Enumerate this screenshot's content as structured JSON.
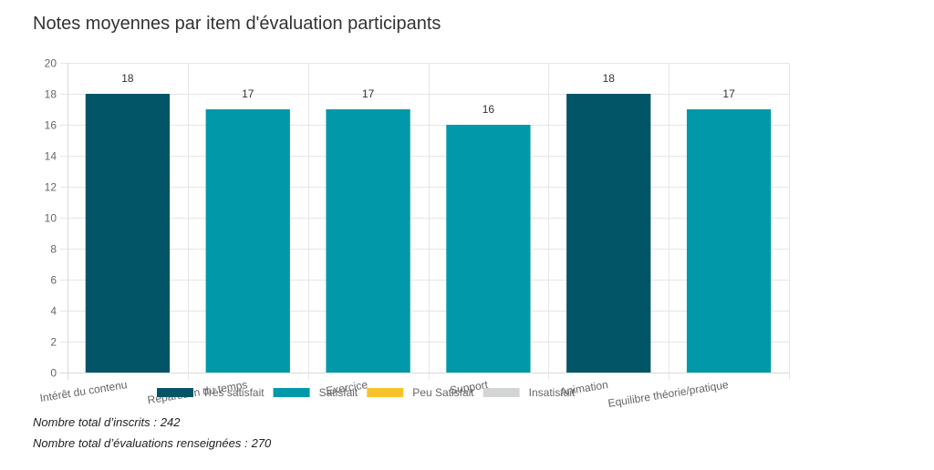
{
  "page": {
    "title": "Notes moyennes par item d'évaluation participants"
  },
  "footer": {
    "inscrits_label": "Nombre total d’inscrits :",
    "inscrits_value": "242",
    "evaluations_label": "Nombre total d’évaluations renseignées :",
    "evaluations_value": "270"
  },
  "chart_data": {
    "type": "bar",
    "title": "Notes moyennes par item d'évaluation participants",
    "xlabel": "",
    "ylabel": "",
    "categories": [
      "Intérêt du contenu",
      "Répartition du temps",
      "Exercice",
      "Support",
      "Animation",
      "Equilibre théorie/pratique"
    ],
    "values": [
      18,
      17,
      17,
      16,
      18,
      17
    ],
    "bar_colors": [
      "#025467",
      "#0199a9",
      "#0199a9",
      "#0199a9",
      "#025467",
      "#0199a9"
    ],
    "data_labels": [
      "18",
      "17",
      "17",
      "16",
      "18",
      "17"
    ],
    "ylim": [
      0,
      20
    ],
    "yticks": [
      0,
      2,
      4,
      6,
      8,
      10,
      12,
      14,
      16,
      18,
      20
    ],
    "grid": true,
    "legend": {
      "placement": "bottom",
      "items": [
        {
          "label": "Très satisfait",
          "color": "#025467"
        },
        {
          "label": "Satisfait",
          "color": "#0199a9"
        },
        {
          "label": "Peu Satisfait",
          "color": "#f6c42a"
        },
        {
          "label": "Insatisfait",
          "color": "#d3d5d5"
        }
      ]
    }
  }
}
